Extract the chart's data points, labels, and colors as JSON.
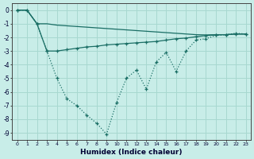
{
  "xlabel": "Humidex (Indice chaleur)",
  "bg_color": "#c8ede8",
  "line_color": "#1a6e65",
  "grid_color": "#a8d8d0",
  "xlim": [
    -0.5,
    23.5
  ],
  "ylim": [
    -9.5,
    0.5
  ],
  "yticks": [
    0,
    -1,
    -2,
    -3,
    -4,
    -5,
    -6,
    -7,
    -8,
    -9
  ],
  "xticks": [
    0,
    1,
    2,
    3,
    4,
    5,
    6,
    7,
    8,
    9,
    10,
    11,
    12,
    13,
    14,
    15,
    16,
    17,
    18,
    19,
    20,
    21,
    22,
    23
  ],
  "line1_x": [
    0,
    1,
    2,
    3,
    4,
    5,
    6,
    7,
    8,
    9,
    10,
    11,
    12,
    13,
    14,
    15,
    16,
    17,
    18,
    19,
    20,
    21,
    22,
    23
  ],
  "line1_y": [
    0,
    0,
    -1,
    -3,
    -5,
    -6.5,
    -7.0,
    -7.7,
    -8.3,
    -9.1,
    -6.8,
    -5.0,
    -4.4,
    -5.8,
    -3.8,
    -3.1,
    -4.5,
    -3.0,
    -2.2,
    -2.1,
    -1.85,
    -1.8,
    -1.7,
    -1.75
  ],
  "line2_x": [
    0,
    1,
    2,
    3,
    4,
    5,
    6,
    7,
    8,
    9,
    10,
    11,
    12,
    13,
    14,
    15,
    16,
    17,
    18,
    19,
    20,
    21,
    22,
    23
  ],
  "line2_y": [
    0,
    0,
    -1,
    -1,
    -1.1,
    -1.15,
    -1.2,
    -1.25,
    -1.3,
    -1.35,
    -1.4,
    -1.45,
    -1.5,
    -1.55,
    -1.6,
    -1.65,
    -1.7,
    -1.75,
    -1.8,
    -1.82,
    -1.8,
    -1.8,
    -1.75,
    -1.75
  ],
  "line3_x": [
    0,
    1,
    2,
    3,
    4,
    5,
    6,
    7,
    8,
    9,
    10,
    11,
    12,
    13,
    14,
    15,
    16,
    17,
    18,
    19,
    20,
    21,
    22,
    23
  ],
  "line3_y": [
    0,
    0,
    -1,
    -3,
    -3,
    -2.9,
    -2.8,
    -2.7,
    -2.65,
    -2.55,
    -2.5,
    -2.45,
    -2.4,
    -2.35,
    -2.3,
    -2.2,
    -2.1,
    -2.05,
    -1.95,
    -1.87,
    -1.82,
    -1.8,
    -1.76,
    -1.76
  ]
}
